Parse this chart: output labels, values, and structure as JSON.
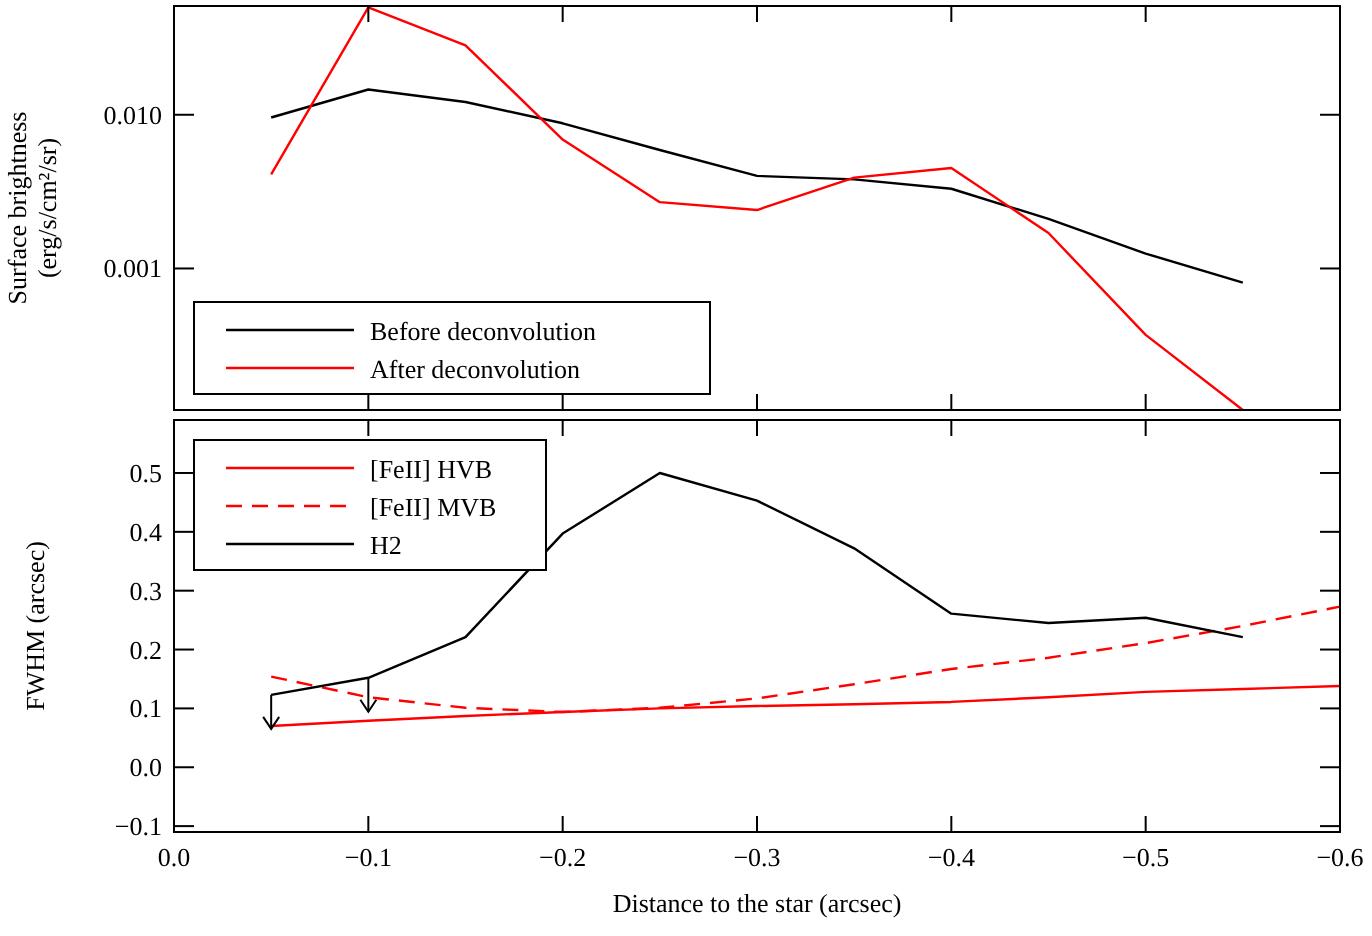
{
  "chart_data": [
    {
      "type": "line",
      "ylabel": "Surface brightness\n(erg/s/cm²/sr)",
      "log": "y",
      "x": [
        -0.05,
        -0.1,
        -0.15,
        -0.2,
        -0.25,
        -0.3,
        -0.35,
        -0.4,
        -0.45,
        -0.5,
        -0.55
      ],
      "series": [
        {
          "name": "Before deconvolution",
          "color": "#000000",
          "values": [
            0.0096,
            0.0146,
            0.0121,
            0.0088,
            0.0059,
            0.004,
            0.0038,
            0.0033,
            0.0021,
            0.00125,
            0.00081
          ]
        },
        {
          "name": "After deconvolution",
          "color": "#ff0000",
          "values": [
            0.0041,
            0.05,
            0.0283,
            0.0069,
            0.0027,
            0.0024,
            0.0039,
            0.0045,
            0.0017,
            0.00037,
            0.00012
          ]
        }
      ],
      "xlim": [
        0,
        -0.6
      ],
      "xticks": [
        0,
        -0.1,
        -0.2,
        -0.3,
        -0.4,
        -0.5,
        -0.6
      ],
      "ylim": [
        0.00012,
        0.051
      ],
      "yticks": [
        {
          "value": 0.001,
          "label": "0.001"
        },
        {
          "value": 0.01,
          "label": "0.010"
        }
      ],
      "tick_labels": "y",
      "legend": "bottom left",
      "grid": false
    },
    {
      "type": "line",
      "xlabel": "Distance to the star (arcsec)",
      "ylabel": "FWHM (arcsec)",
      "series": [
        {
          "name": "[FeII] HVB",
          "color": "#ff0000",
          "line_style": "solid",
          "x": [
            -0.05,
            -0.1,
            -0.15,
            -0.2,
            -0.25,
            -0.3,
            -0.35,
            -0.4,
            -0.45,
            -0.5,
            -0.55,
            -0.6
          ],
          "values": [
            0.07,
            0.079,
            0.087,
            0.094,
            0.1,
            0.104,
            0.107,
            0.111,
            0.119,
            0.128,
            0.133,
            0.138
          ]
        },
        {
          "name": "[FeII] MVB",
          "color": "#ff0000",
          "line_style": "dashed",
          "x": [
            -0.05,
            -0.1,
            -0.15,
            -0.2,
            -0.25,
            -0.3,
            -0.35,
            -0.4,
            -0.45,
            -0.5,
            -0.55,
            -0.6
          ],
          "values": [
            0.154,
            0.119,
            0.101,
            0.094,
            0.101,
            0.117,
            0.141,
            0.167,
            0.186,
            0.211,
            0.24,
            0.273
          ]
        },
        {
          "name": "H2",
          "color": "#000000",
          "line_style": "solid",
          "x": [
            -0.05,
            -0.1,
            -0.15,
            -0.2,
            -0.25,
            -0.3,
            -0.35,
            -0.4,
            -0.45,
            -0.5,
            -0.55
          ],
          "values": [
            0.123,
            0.152,
            0.221,
            0.397,
            0.5,
            0.453,
            0.372,
            0.261,
            0.245,
            0.254,
            0.221
          ]
        }
      ],
      "xlim": [
        0,
        -0.6
      ],
      "xticks": [
        {
          "value": 0,
          "label": "0.0"
        },
        {
          "value": -0.1,
          "label": "−0.1"
        },
        {
          "value": -0.2,
          "label": "−0.2"
        },
        {
          "value": -0.3,
          "label": "−0.3"
        },
        {
          "value": -0.4,
          "label": "−0.4"
        },
        {
          "value": -0.5,
          "label": "−0.5"
        },
        {
          "value": -0.6,
          "label": "−0.6"
        }
      ],
      "ylim": [
        -0.11,
        0.59
      ],
      "yticks": [
        {
          "value": -0.1,
          "label": "−0.1"
        },
        {
          "value": 0,
          "label": "0.0"
        },
        0.1,
        0.2,
        0.3,
        0.4,
        0.5
      ],
      "legend": "top left",
      "grid": false
    }
  ]
}
